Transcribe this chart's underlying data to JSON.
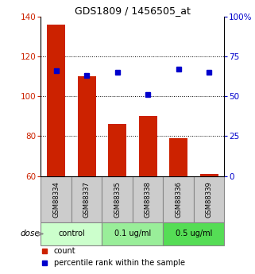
{
  "title": "GDS1809 / 1456505_at",
  "samples": [
    "GSM88334",
    "GSM88337",
    "GSM88335",
    "GSM88338",
    "GSM88336",
    "GSM88339"
  ],
  "counts": [
    136,
    110,
    86,
    90,
    79,
    61
  ],
  "percentile_ranks": [
    66,
    63,
    65,
    51,
    67,
    65
  ],
  "ylim_left": [
    60,
    140
  ],
  "ylim_right": [
    0,
    100
  ],
  "yticks_left": [
    60,
    80,
    100,
    120,
    140
  ],
  "yticks_right": [
    0,
    25,
    50,
    75,
    100
  ],
  "ytick_right_labels": [
    "0",
    "25",
    "50",
    "75",
    "100%"
  ],
  "bar_color": "#cc2200",
  "dot_color": "#0000cc",
  "groups": [
    {
      "label": "control",
      "color": "#ccffcc",
      "start": 0,
      "end": 1
    },
    {
      "label": "0.1 ug/ml",
      "color": "#99ee99",
      "start": 2,
      "end": 3
    },
    {
      "label": "0.5 ug/ml",
      "color": "#55dd55",
      "start": 4,
      "end": 5
    }
  ],
  "dose_label": "dose",
  "legend_count": "count",
  "legend_pct": "percentile rank within the sample",
  "sample_box_color": "#cccccc",
  "grid_yticks": [
    80,
    100,
    120
  ]
}
